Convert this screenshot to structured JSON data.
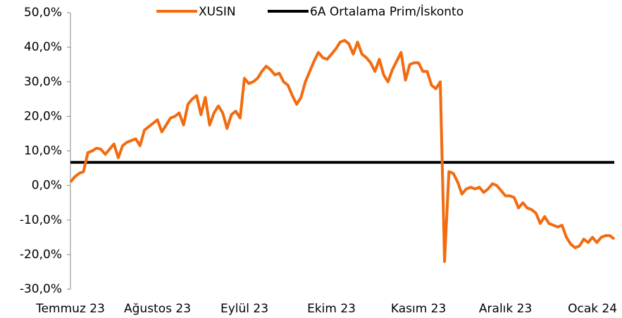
{
  "chart_data": {
    "type": "line",
    "categories": [
      "Temmuz 23",
      null,
      null,
      null,
      null,
      null,
      null,
      null,
      null,
      null,
      null,
      null,
      null,
      null,
      null,
      null,
      null,
      null,
      null,
      null,
      "Ağustos 23",
      null,
      null,
      null,
      null,
      null,
      null,
      null,
      null,
      null,
      null,
      null,
      null,
      null,
      null,
      null,
      null,
      null,
      null,
      null,
      "Eylül 23",
      null,
      null,
      null,
      null,
      null,
      null,
      null,
      null,
      null,
      null,
      null,
      null,
      null,
      null,
      null,
      null,
      null,
      null,
      null,
      "Ekim 23",
      null,
      null,
      null,
      null,
      null,
      null,
      null,
      null,
      null,
      null,
      null,
      null,
      null,
      null,
      null,
      null,
      null,
      null,
      null,
      "Kasım 23",
      null,
      null,
      null,
      null,
      null,
      null,
      null,
      null,
      null,
      null,
      null,
      null,
      null,
      null,
      null,
      null,
      null,
      null,
      null,
      "Aralık 23",
      null,
      null,
      null,
      null,
      null,
      null,
      null,
      null,
      null,
      null,
      null,
      null,
      null,
      null,
      null,
      null,
      null,
      null,
      null,
      "Ocak 24",
      null,
      null,
      null,
      null,
      null
    ],
    "series": [
      {
        "name": "XUSIN",
        "color": "#f26b10",
        "values": [
          1,
          2.5,
          3.5,
          4,
          9.5,
          10,
          10.8,
          10.5,
          9,
          10.5,
          12,
          8,
          11.5,
          12.5,
          13,
          13.5,
          11.5,
          16,
          17,
          18,
          19,
          15.5,
          17.5,
          19.5,
          20,
          21,
          17.5,
          23.5,
          25,
          26,
          20.5,
          25.5,
          17.5,
          21,
          23,
          21,
          16.5,
          20.5,
          21.5,
          19.5,
          31,
          29.5,
          30,
          31,
          33,
          34.5,
          33.5,
          32,
          32.5,
          30,
          29,
          26,
          23.5,
          25.5,
          30,
          33,
          36,
          38.5,
          37,
          36.5,
          38,
          39.5,
          41.5,
          42,
          41,
          38,
          41.5,
          38,
          37,
          35.5,
          33,
          36.5,
          32,
          30,
          33.5,
          36,
          38.5,
          30.5,
          35,
          35.5,
          35.5,
          33,
          33,
          29,
          28,
          30,
          -22,
          4,
          3.5,
          1,
          -2.5,
          -1,
          -0.5,
          -1,
          -0.5,
          -2,
          -1,
          0.5,
          0,
          -1.5,
          -3,
          -3,
          -3.5,
          -6.5,
          -5,
          -6.5,
          -7,
          -8,
          -11,
          -9,
          -11,
          -11.5,
          -12,
          -11.5,
          -15,
          -17,
          -18,
          -17.5,
          -15.5,
          -16.5,
          -15,
          -16.5,
          -15,
          -14.5,
          -14.5,
          -15.5
        ]
      },
      {
        "name": "6A Ortalama Prim/İskonto",
        "color": "#000000",
        "values": [
          6.7,
          6.7,
          6.7,
          6.7,
          6.7,
          6.7,
          6.7,
          6.7,
          6.7,
          6.7,
          6.7,
          6.7,
          6.7,
          6.7,
          6.7,
          6.7,
          6.7,
          6.7,
          6.7,
          6.7,
          6.7,
          6.7,
          6.7,
          6.7,
          6.7,
          6.7,
          6.7,
          6.7,
          6.7,
          6.7,
          6.7,
          6.7,
          6.7,
          6.7,
          6.7,
          6.7,
          6.7,
          6.7,
          6.7,
          6.7,
          6.7,
          6.7,
          6.7,
          6.7,
          6.7,
          6.7,
          6.7,
          6.7,
          6.7,
          6.7,
          6.7,
          6.7,
          6.7,
          6.7,
          6.7,
          6.7,
          6.7,
          6.7,
          6.7,
          6.7,
          6.7,
          6.7,
          6.7,
          6.7,
          6.7,
          6.7,
          6.7,
          6.7,
          6.7,
          6.7,
          6.7,
          6.7,
          6.7,
          6.7,
          6.7,
          6.7,
          6.7,
          6.7,
          6.7,
          6.7,
          6.7,
          6.7,
          6.7,
          6.7,
          6.7,
          6.7,
          6.7,
          6.7,
          6.7,
          6.7,
          6.7,
          6.7,
          6.7,
          6.7,
          6.7,
          6.7,
          6.7,
          6.7,
          6.7,
          6.7,
          6.7,
          6.7,
          6.7,
          6.7,
          6.7,
          6.7,
          6.7,
          6.7,
          6.7,
          6.7,
          6.7,
          6.7,
          6.7,
          6.7,
          6.7,
          6.7,
          6.7,
          6.7,
          6.7,
          6.7,
          6.7,
          6.7,
          6.7,
          6.7,
          6.7,
          6.7
        ]
      }
    ],
    "ylim": [
      -30,
      50
    ],
    "yticks": [
      {
        "value": -30,
        "label": "-30,0%"
      },
      {
        "value": -20,
        "label": "-20,0%"
      },
      {
        "value": -10,
        "label": "-10,0%"
      },
      {
        "value": 0,
        "label": "0,0%"
      },
      {
        "value": 10,
        "label": "10,0%"
      },
      {
        "value": 20,
        "label": "20,0%"
      },
      {
        "value": 30,
        "label": "30,0%"
      },
      {
        "value": 40,
        "label": "40,0%"
      },
      {
        "value": 50,
        "label": "50,0%"
      }
    ],
    "grid": false,
    "legend": "top"
  }
}
